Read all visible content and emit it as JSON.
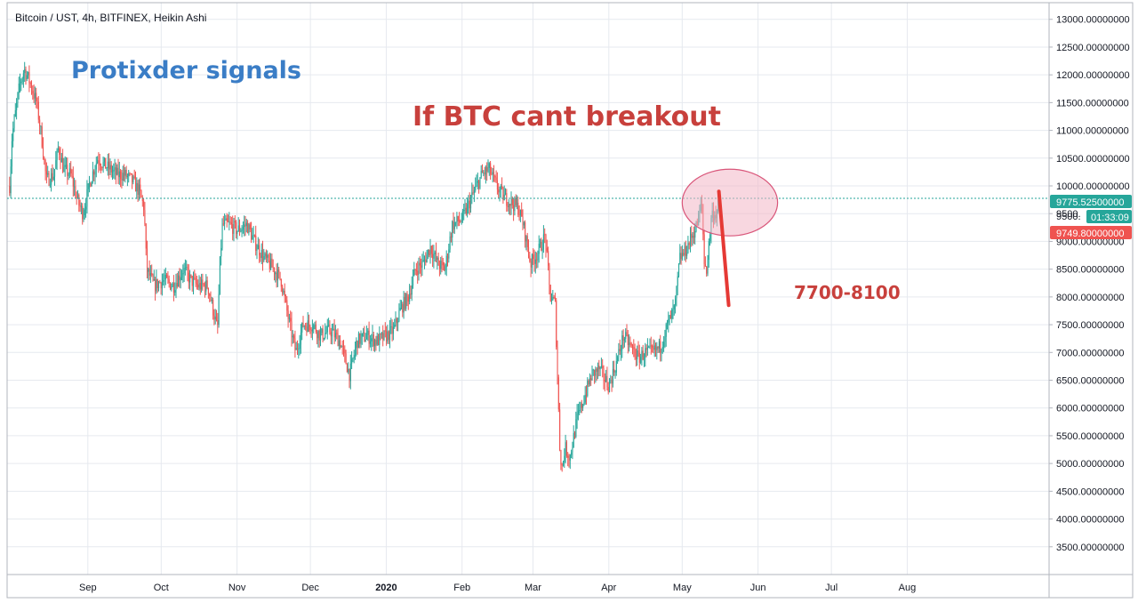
{
  "header": {
    "title": "Bitcoin / UST, 4h, BITFINEX, Heikin Ashi"
  },
  "overlay": {
    "brand": "Protixder signals",
    "headline": "If BTC cant breakout",
    "target_label": "7700-8100"
  },
  "price_badges": {
    "last_price": "9775.52500000",
    "countdown_price": "9500.",
    "countdown": "01:33:09",
    "bid_price": "9749.80000000"
  },
  "colors": {
    "up": "#26a69a",
    "down": "#ef5350",
    "grid": "#e6e9ef",
    "axis_text": "#131722",
    "brand": "#3a7dc6",
    "annotation": "#c8403c",
    "ellipse_fill": "#f3b6c6",
    "ellipse_stroke": "#d9567a",
    "price_line": "#26a69a"
  },
  "chart_data": {
    "type": "line",
    "chart_style": "candlestick (Heikin Ashi), approximated",
    "y_axis": {
      "side": "right",
      "min": 3000,
      "max": 13300,
      "ticks": [
        3500,
        4000,
        4500,
        5000,
        5500,
        6000,
        6500,
        7000,
        7500,
        8000,
        8500,
        9000,
        9500,
        10000,
        10500,
        11000,
        11500,
        12000,
        12500,
        13000
      ],
      "tick_labels": [
        "3500.00000000",
        "4000.00000000",
        "4500.00000000",
        "5000.00000000",
        "5500.00000000",
        "6000.00000000",
        "6500.00000000",
        "7000.00000000",
        "7500.00000000",
        "8000.00000000",
        "8500.00000000",
        "9000.00000000",
        "9500.",
        "10000.00000000",
        "10500.00000000",
        "11000.00000000",
        "11500.00000000",
        "12000.00000000",
        "12500.00000000",
        "13000.00000000"
      ]
    },
    "x_axis": {
      "min": "2019-07-30",
      "max": "2020-09-28",
      "ticks": [
        "2019-09-01",
        "2019-10-01",
        "2019-11-01",
        "2019-12-01",
        "2020-01-01",
        "2020-02-01",
        "2020-03-01",
        "2020-04-01",
        "2020-05-01",
        "2020-06-01",
        "2020-07-01",
        "2020-08-01"
      ],
      "tick_labels": [
        "Sep",
        "Oct",
        "Nov",
        "Dec",
        "2020",
        "Feb",
        "Mar",
        "Apr",
        "May",
        "Jun",
        "Jul",
        "Aug"
      ]
    },
    "grid": true,
    "series": [
      {
        "x": [
          "2019-07-31",
          "2019-08-01",
          "2019-08-04",
          "2019-08-06",
          "2019-08-08",
          "2019-08-11",
          "2019-08-13",
          "2019-08-15",
          "2019-08-18",
          "2019-08-20",
          "2019-08-22",
          "2019-08-25",
          "2019-08-28",
          "2019-08-30",
          "2019-09-02",
          "2019-09-05",
          "2019-09-07",
          "2019-09-10",
          "2019-09-13",
          "2019-09-16",
          "2019-09-19",
          "2019-09-22",
          "2019-09-24",
          "2019-09-25",
          "2019-09-28",
          "2019-10-02",
          "2019-10-06",
          "2019-10-10",
          "2019-10-13",
          "2019-10-16",
          "2019-10-20",
          "2019-10-23",
          "2019-10-24",
          "2019-10-25",
          "2019-10-26",
          "2019-10-29",
          "2019-11-01",
          "2019-11-05",
          "2019-11-08",
          "2019-11-12",
          "2019-11-16",
          "2019-11-19",
          "2019-11-22",
          "2019-11-25",
          "2019-11-28",
          "2019-12-02",
          "2019-12-05",
          "2019-12-09",
          "2019-12-13",
          "2019-12-17",
          "2019-12-20",
          "2019-12-24",
          "2019-12-28",
          "2020-01-01",
          "2020-01-04",
          "2020-01-07",
          "2020-01-10",
          "2020-01-13",
          "2020-01-16",
          "2020-01-19",
          "2020-01-22",
          "2020-01-25",
          "2020-01-28",
          "2020-02-01",
          "2020-02-05",
          "2020-02-09",
          "2020-02-12",
          "2020-02-15",
          "2020-02-18",
          "2020-02-21",
          "2020-02-24",
          "2020-02-26",
          "2020-02-29",
          "2020-03-03",
          "2020-03-06",
          "2020-03-08",
          "2020-03-10",
          "2020-03-12",
          "2020-03-13",
          "2020-03-14",
          "2020-03-16",
          "2020-03-19",
          "2020-03-22",
          "2020-03-25",
          "2020-03-28",
          "2020-04-01",
          "2020-04-04",
          "2020-04-07",
          "2020-04-10",
          "2020-04-13",
          "2020-04-16",
          "2020-04-19",
          "2020-04-22",
          "2020-04-25",
          "2020-04-28",
          "2020-04-30",
          "2020-05-02",
          "2020-05-05",
          "2020-05-07",
          "2020-05-09",
          "2020-05-10",
          "2020-05-11",
          "2020-05-13",
          "2020-05-15",
          "2020-05-16"
        ],
        "y": [
          10000,
          10900,
          11800,
          12100,
          11900,
          11500,
          10900,
          10100,
          10200,
          10700,
          10300,
          10200,
          9700,
          9500,
          10100,
          10500,
          10400,
          10300,
          10200,
          10200,
          10100,
          9900,
          9600,
          8500,
          8200,
          8300,
          8200,
          8500,
          8300,
          8200,
          8200,
          7600,
          7400,
          8600,
          9300,
          9300,
          9200,
          9300,
          9000,
          8700,
          8500,
          8300,
          7600,
          7000,
          7500,
          7500,
          7300,
          7400,
          7200,
          6600,
          7200,
          7300,
          7200,
          7300,
          7400,
          7800,
          8000,
          8500,
          8600,
          8900,
          8600,
          8500,
          9300,
          9400,
          9800,
          10200,
          10300,
          10000,
          9800,
          9700,
          9600,
          9300,
          8600,
          8800,
          9100,
          8000,
          7900,
          5200,
          4900,
          5300,
          5100,
          5800,
          6200,
          6600,
          6700,
          6400,
          6800,
          7300,
          7100,
          6900,
          7000,
          7000,
          7100,
          7500,
          7800,
          8700,
          8800,
          9100,
          9300,
          9700,
          8600,
          8500,
          9500,
          9500,
          9700
        ]
      }
    ],
    "annotations": {
      "current_price_line": 9775.525,
      "forecast_arrow": {
        "from": [
          "2020-05-16",
          9900
        ],
        "to": [
          "2020-05-20",
          7850
        ]
      },
      "resistance_zone": {
        "x": [
          "2020-05-01",
          "2020-06-09"
        ],
        "y": [
          9100,
          10300
        ]
      }
    }
  }
}
